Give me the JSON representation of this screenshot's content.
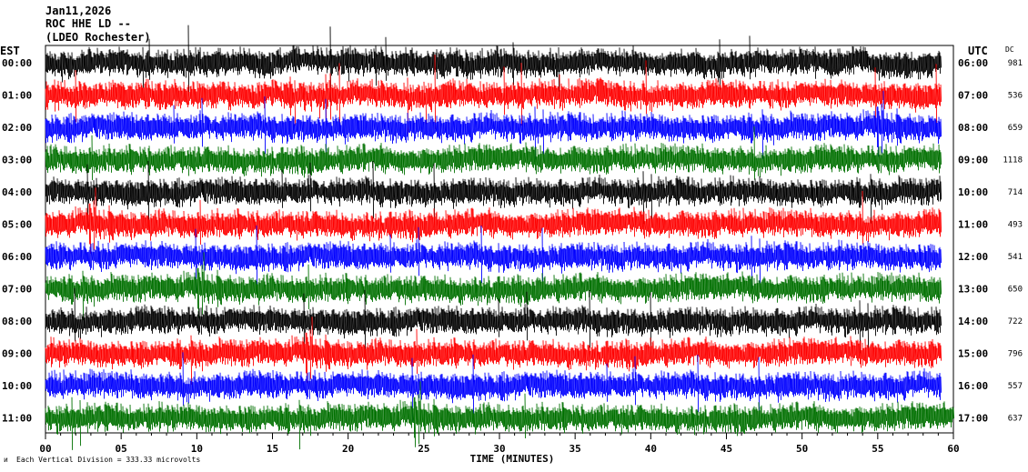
{
  "header": {
    "date": "Jan11,2026",
    "station": "ROC HHE LD --",
    "network": "(LDEO Rochester)"
  },
  "labels": {
    "left_tz": "EST",
    "right_tz": "UTC",
    "dc": "DC",
    "xlabel": "TIME (MINUTES)",
    "footnote": "Each Vertical Division =  333.33 microvolts"
  },
  "colors": {
    "trace_cycle": [
      "#000000",
      "#ff0000",
      "#0000ff",
      "#007000"
    ],
    "background": "#ffffff",
    "axis": "#000000"
  },
  "chart_data": {
    "type": "line",
    "title": "",
    "xlabel": "TIME (MINUTES)",
    "xlim": [
      0,
      60
    ],
    "x_ticks": [
      "00",
      "05",
      "10",
      "15",
      "20",
      "25",
      "30",
      "35",
      "40",
      "45",
      "50",
      "55",
      "60"
    ],
    "rows": [
      {
        "est": "00:00",
        "utc": "06:00",
        "dc": "981"
      },
      {
        "est": "01:00",
        "utc": "07:00",
        "dc": "536"
      },
      {
        "est": "02:00",
        "utc": "08:00",
        "dc": "659"
      },
      {
        "est": "03:00",
        "utc": "09:00",
        "dc": "1118"
      },
      {
        "est": "04:00",
        "utc": "10:00",
        "dc": "714"
      },
      {
        "est": "05:00",
        "utc": "11:00",
        "dc": "493"
      },
      {
        "est": "06:00",
        "utc": "12:00",
        "dc": "541"
      },
      {
        "est": "07:00",
        "utc": "13:00",
        "dc": "650"
      },
      {
        "est": "08:00",
        "utc": "14:00",
        "dc": "722"
      },
      {
        "est": "09:00",
        "utc": "15:00",
        "dc": "796"
      },
      {
        "est": "10:00",
        "utc": "16:00",
        "dc": "557"
      },
      {
        "est": "11:00",
        "utc": "17:00",
        "dc": "637"
      }
    ]
  }
}
